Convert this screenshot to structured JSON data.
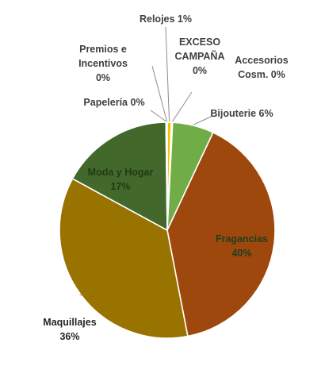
{
  "chart_data": {
    "type": "pie",
    "title": "",
    "slices": [
      {
        "label": "Relojes",
        "display": "1%",
        "value": 0.6,
        "color": "#f2c200"
      },
      {
        "label": "EXCESO CAMPAÑA",
        "display": "0%",
        "value": 0.1,
        "color": "#c9b27a"
      },
      {
        "label": "Accesorios Cosm.",
        "display": "0%",
        "value": 0.1,
        "color": "#b7c79a"
      },
      {
        "label": "Bijouterie",
        "display": "6%",
        "value": 6.2,
        "color": "#70ad47"
      },
      {
        "label": "Fragancias",
        "display": "40%",
        "value": 40.0,
        "color": "#9e480e"
      },
      {
        "label": "Maquillajes",
        "display": "36%",
        "value": 36.0,
        "color": "#997300"
      },
      {
        "label": "Moda y Hogar",
        "display": "17%",
        "value": 16.9,
        "color": "#43682b"
      },
      {
        "label": "Papelería",
        "display": "0%",
        "value": 0.1,
        "color": "#a5a5a5"
      },
      {
        "label": "Premios e Incentivos",
        "display": "0%",
        "value": 0.1,
        "color": "#dcdcdc"
      }
    ],
    "legend": "none",
    "data_labels": "category and percentage"
  }
}
